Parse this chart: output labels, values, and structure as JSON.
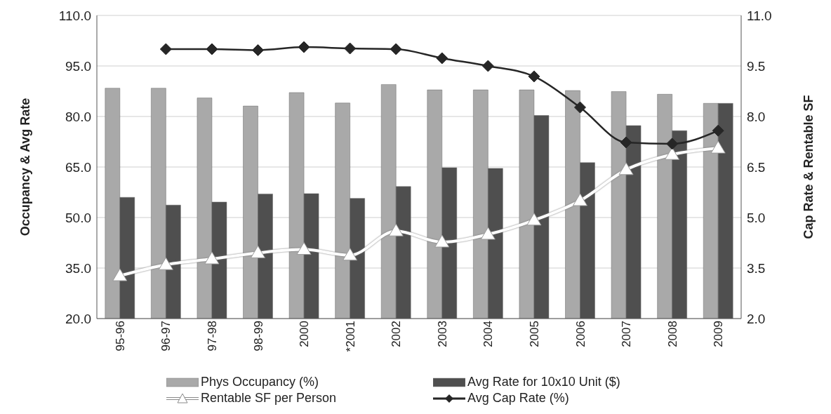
{
  "chart_data": {
    "type": "bar",
    "categories": [
      "95-96",
      "96-97",
      "97-98",
      "98-99",
      "2000",
      "*2001",
      "2002",
      "2003",
      "2004",
      "2005",
      "2006",
      "2007",
      "2008",
      "2009"
    ],
    "series": [
      {
        "name": "Phys Occupancy (%)",
        "color": "#a9a9a9",
        "values": [
          88.4,
          88.4,
          85.5,
          83.1,
          87.1,
          84.0,
          89.5,
          87.9,
          87.9,
          87.9,
          87.7,
          87.4,
          86.6,
          83.9
        ]
      },
      {
        "name": "Avg Rate for 10x10 Unit ($)",
        "color": "#4f4f4f",
        "values": [
          56.0,
          53.7,
          54.6,
          57.0,
          57.1,
          55.7,
          59.2,
          64.8,
          64.6,
          80.3,
          66.3,
          77.3,
          75.8,
          83.9
        ]
      },
      {
        "name": "Rentable SF per Person",
        "type": "line",
        "axis": "y2",
        "marker": "triangle",
        "color": "#ffffff",
        "values": [
          3.27,
          3.6,
          3.77,
          3.95,
          4.05,
          3.88,
          4.6,
          4.27,
          4.5,
          4.92,
          5.5,
          6.42,
          6.87,
          7.06
        ]
      },
      {
        "name": "Avg Cap Rate (%)",
        "type": "line",
        "axis": "y2",
        "marker": "diamond",
        "color": "#262626",
        "values": [
          null,
          10.0,
          10.0,
          9.97,
          10.06,
          10.02,
          10.0,
          9.73,
          9.5,
          9.19,
          8.27,
          7.23,
          7.19,
          7.58
        ]
      }
    ],
    "ylabel": "Occupancy & Avg Rate",
    "y2label": "Cap Rate & Rentable SF",
    "ylim": [
      20,
      110
    ],
    "yticks": [
      {
        "value": 20,
        "label": "20.0"
      },
      {
        "value": 35,
        "label": "35.0"
      },
      {
        "value": 50,
        "label": "50.0"
      },
      {
        "value": 65,
        "label": "65.0"
      },
      {
        "value": 80,
        "label": "80.0"
      },
      {
        "value": 95,
        "label": "95.0"
      },
      {
        "value": 110,
        "label": "110.0"
      }
    ],
    "y2lim": [
      2,
      11
    ],
    "y2ticks": [
      {
        "value": 2,
        "label": "2.0"
      },
      {
        "value": 3.5,
        "label": "3.5"
      },
      {
        "value": 5,
        "label": "5.0"
      },
      {
        "value": 6.5,
        "label": "6.5"
      },
      {
        "value": 8,
        "label": "8.0"
      },
      {
        "value": 9.5,
        "label": "9.5"
      },
      {
        "value": 11,
        "label": "11.0"
      }
    ],
    "grid": "y",
    "legend": "bottom"
  }
}
